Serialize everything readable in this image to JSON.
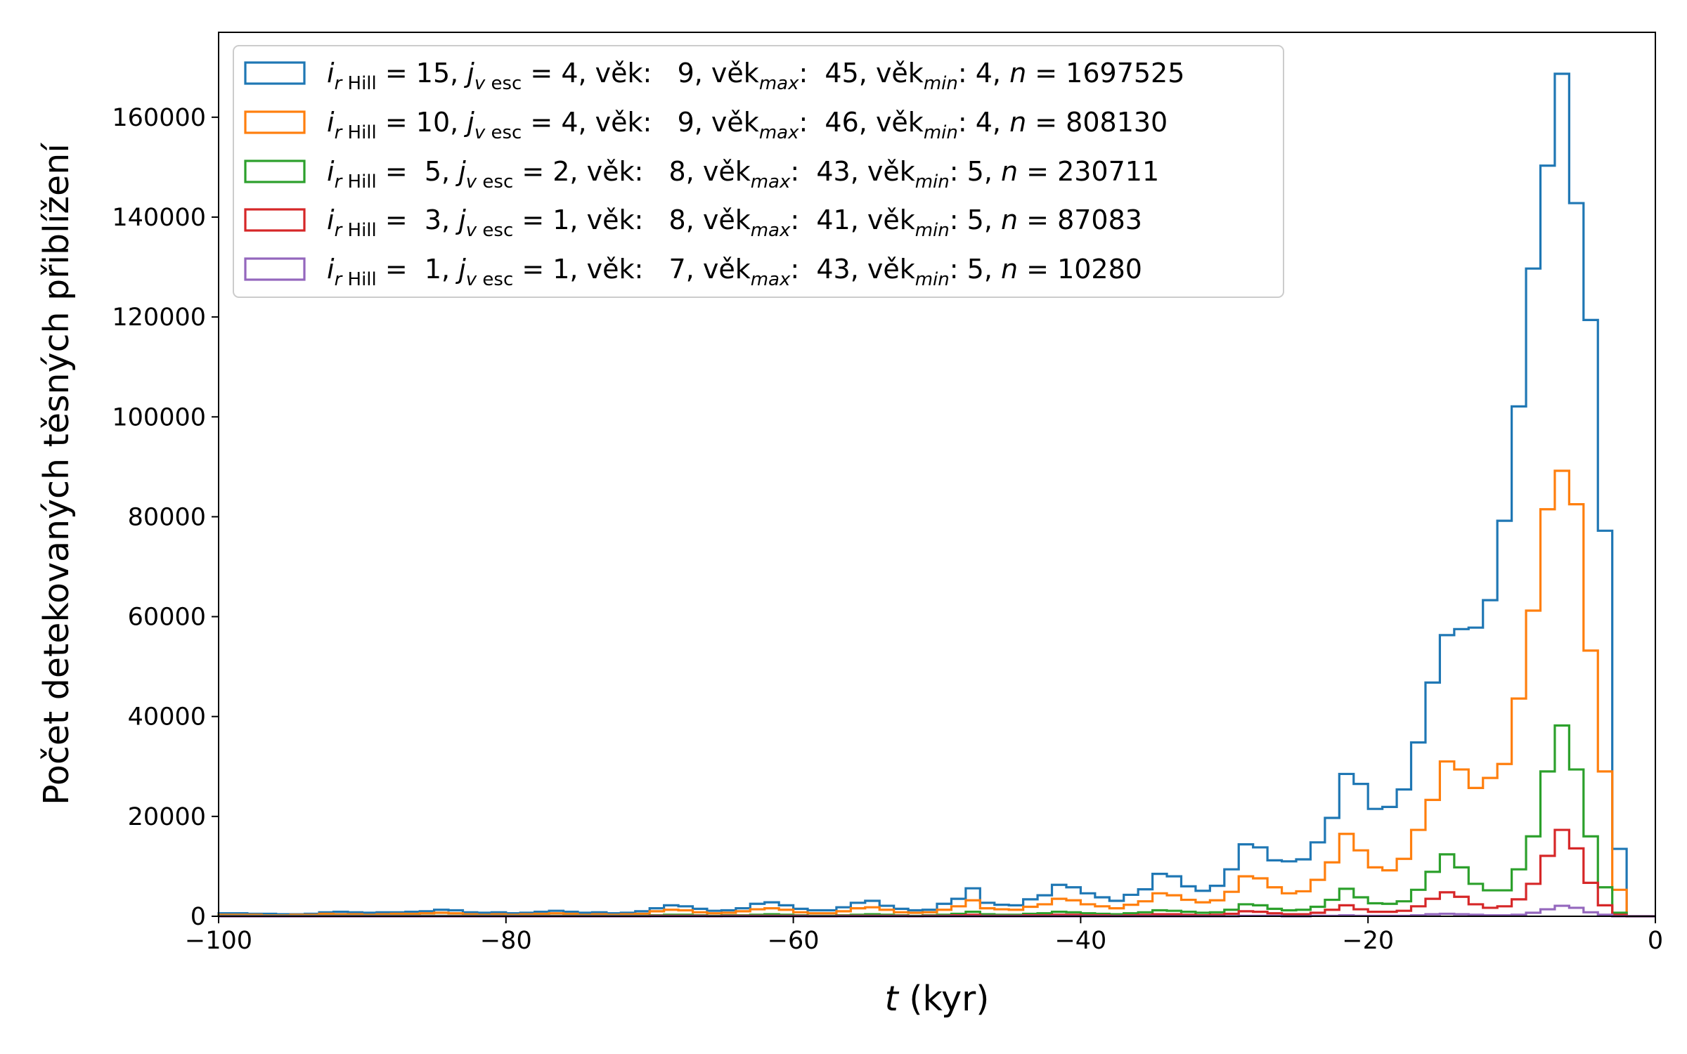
{
  "chart_data": {
    "type": "histogram",
    "xlabel": "t (kyr)",
    "ylabel": "Počet detekovaných těsných přiblížení",
    "xlim": [
      -100,
      0
    ],
    "ylim": [
      0,
      177000
    ],
    "x_ticks": [
      "−100",
      "−80",
      "−60",
      "−40",
      "−20",
      "0"
    ],
    "y_ticks": [
      "0",
      "20000",
      "40000",
      "60000",
      "80000",
      "100000",
      "120000",
      "140000",
      "160000"
    ],
    "bin_width_kyr": 1,
    "bin_edges_start": -100,
    "legend_position": "upper-left",
    "grid": false,
    "series": [
      {
        "color": "#1f77b4",
        "legend": {
          "r": "15",
          "v": "4",
          "age": "9",
          "agemax": "45",
          "agemin": "4",
          "n": "1697525"
        },
        "values": [
          600,
          600,
          500,
          500,
          400,
          400,
          500,
          800,
          900,
          800,
          700,
          800,
          800,
          900,
          1000,
          1300,
          1200,
          800,
          700,
          800,
          600,
          700,
          900,
          1100,
          900,
          700,
          800,
          600,
          700,
          1000,
          1600,
          2200,
          2000,
          1500,
          1100,
          1200,
          1600,
          2500,
          2800,
          2200,
          1500,
          1200,
          1200,
          1800,
          2700,
          3100,
          2100,
          1500,
          1200,
          1300,
          2500,
          3500,
          5600,
          2700,
          2300,
          2200,
          3400,
          4200,
          6300,
          5800,
          4600,
          3800,
          3100,
          4300,
          5400,
          8500,
          8000,
          6000,
          5100,
          6100,
          9400,
          14400,
          13800,
          11200,
          11000,
          11400,
          14800,
          19700,
          28500,
          26500,
          21500,
          21900,
          25400,
          34800,
          46800,
          56300,
          57500,
          57800,
          63300,
          79200,
          102100,
          129700,
          150300,
          168700,
          142800,
          119400,
          77200,
          13500,
          0,
          0
        ]
      },
      {
        "color": "#ff7f0e",
        "legend": {
          "r": "10",
          "v": "4",
          "age": "9",
          "agemax": "46",
          "agemin": "4",
          "n": "808130"
        },
        "values": [
          300,
          300,
          300,
          200,
          200,
          300,
          300,
          500,
          400,
          400,
          300,
          400,
          500,
          500,
          600,
          700,
          600,
          400,
          300,
          400,
          300,
          400,
          500,
          600,
          500,
          300,
          400,
          300,
          400,
          500,
          1000,
          1300,
          1200,
          800,
          600,
          700,
          1000,
          1400,
          1600,
          1300,
          800,
          600,
          600,
          1000,
          1600,
          1800,
          1300,
          800,
          700,
          800,
          1300,
          2000,
          3200,
          1600,
          1400,
          1300,
          1900,
          2400,
          3500,
          3200,
          2400,
          2000,
          1600,
          2300,
          3000,
          4600,
          4200,
          3300,
          2800,
          3200,
          4900,
          8000,
          7600,
          5800,
          4600,
          5000,
          7300,
          10800,
          16500,
          13200,
          9800,
          9200,
          11500,
          17300,
          23300,
          31000,
          29400,
          25700,
          27700,
          30500,
          43600,
          61200,
          81500,
          89200,
          82500,
          53200,
          29000,
          5300,
          0,
          0
        ]
      },
      {
        "color": "#2ca02c",
        "legend": {
          "r": "5",
          "v": "2",
          "age": "8",
          "agemax": "43",
          "agemin": "5",
          "n": "230711"
        },
        "values": [
          100,
          100,
          100,
          100,
          100,
          100,
          100,
          100,
          100,
          100,
          100,
          100,
          100,
          100,
          100,
          100,
          100,
          100,
          100,
          100,
          100,
          100,
          100,
          100,
          100,
          100,
          100,
          100,
          100,
          100,
          200,
          300,
          300,
          200,
          100,
          200,
          200,
          300,
          400,
          300,
          200,
          100,
          100,
          200,
          300,
          400,
          300,
          200,
          100,
          200,
          300,
          500,
          900,
          400,
          300,
          300,
          500,
          600,
          900,
          800,
          600,
          500,
          400,
          600,
          800,
          1200,
          1100,
          900,
          700,
          800,
          1300,
          2400,
          2200,
          1500,
          1200,
          1300,
          1900,
          3300,
          5500,
          3800,
          2600,
          2500,
          3000,
          5300,
          8900,
          12400,
          9800,
          6500,
          5200,
          5200,
          9400,
          16000,
          29000,
          38200,
          29400,
          16000,
          5800,
          700,
          0,
          0
        ]
      },
      {
        "color": "#d62728",
        "legend": {
          "r": "3",
          "v": "1",
          "age": "8",
          "agemax": "41",
          "agemin": "5",
          "n": "87083"
        },
        "values": [
          0,
          0,
          0,
          0,
          0,
          0,
          0,
          0,
          0,
          0,
          0,
          0,
          0,
          0,
          0,
          0,
          0,
          0,
          0,
          0,
          0,
          0,
          0,
          0,
          0,
          0,
          0,
          0,
          0,
          0,
          100,
          100,
          100,
          100,
          0,
          100,
          100,
          100,
          100,
          100,
          100,
          0,
          0,
          100,
          100,
          100,
          100,
          100,
          0,
          100,
          100,
          200,
          300,
          100,
          100,
          100,
          200,
          200,
          300,
          300,
          200,
          200,
          100,
          200,
          300,
          400,
          400,
          300,
          200,
          300,
          500,
          1000,
          900,
          600,
          400,
          400,
          700,
          1300,
          2200,
          1400,
          900,
          900,
          1100,
          2000,
          3500,
          4800,
          3900,
          2400,
          1700,
          2000,
          3400,
          6500,
          12100,
          17300,
          13600,
          6700,
          2200,
          300,
          0,
          0
        ]
      },
      {
        "color": "#9467bd",
        "legend": {
          "r": "1",
          "v": "1",
          "age": "7",
          "agemax": "43",
          "agemin": "5",
          "n": "10280"
        },
        "values": [
          0,
          0,
          0,
          0,
          0,
          0,
          0,
          0,
          0,
          0,
          0,
          0,
          0,
          0,
          0,
          0,
          0,
          0,
          0,
          0,
          0,
          0,
          0,
          0,
          0,
          0,
          0,
          0,
          0,
          0,
          0,
          0,
          0,
          0,
          0,
          0,
          0,
          0,
          0,
          0,
          0,
          0,
          0,
          0,
          0,
          0,
          0,
          0,
          0,
          0,
          0,
          0,
          0,
          0,
          0,
          0,
          0,
          0,
          0,
          0,
          0,
          0,
          0,
          0,
          0,
          0,
          0,
          0,
          0,
          0,
          0,
          100,
          100,
          100,
          0,
          0,
          100,
          100,
          200,
          100,
          100,
          100,
          100,
          200,
          400,
          500,
          400,
          300,
          200,
          200,
          300,
          700,
          1400,
          2100,
          1700,
          800,
          300,
          0,
          0,
          0
        ]
      }
    ]
  }
}
